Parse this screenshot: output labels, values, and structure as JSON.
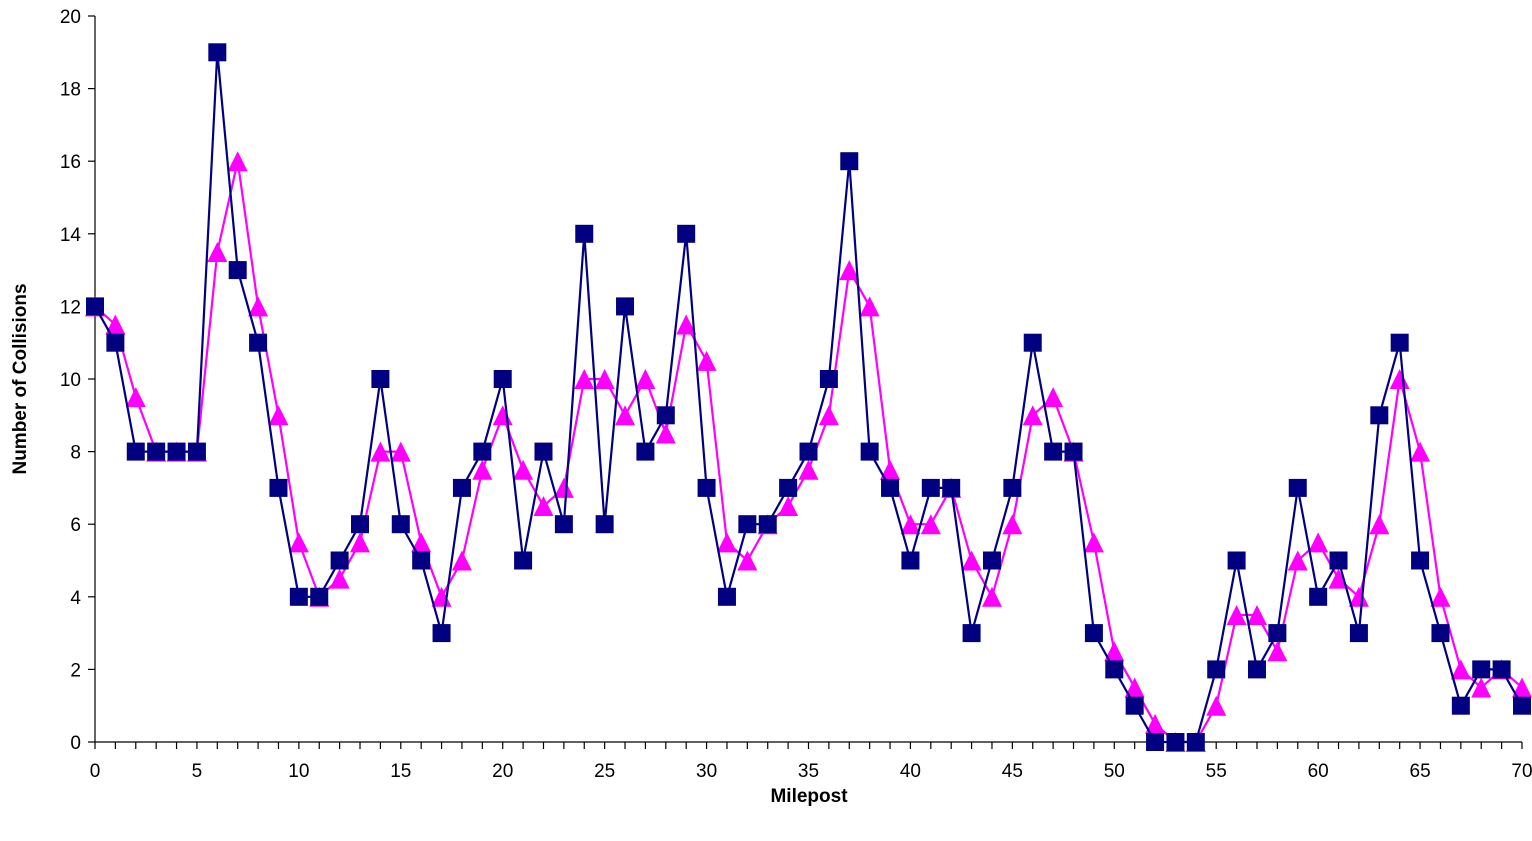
{
  "chart_data": {
    "type": "line",
    "title": "",
    "xlabel": "Milepost",
    "ylabel": "Number of Collisions",
    "xlim": [
      0,
      70
    ],
    "ylim": [
      0,
      20
    ],
    "x_ticks": [
      0,
      5,
      10,
      15,
      20,
      25,
      30,
      35,
      40,
      45,
      50,
      55,
      60,
      65,
      70
    ],
    "y_ticks": [
      0,
      2,
      4,
      6,
      8,
      10,
      12,
      14,
      16,
      18,
      20
    ],
    "x_minor_step": 1,
    "grid": false,
    "legend": "none",
    "x": [
      0,
      1,
      2,
      3,
      4,
      5,
      6,
      7,
      8,
      9,
      10,
      11,
      12,
      13,
      14,
      15,
      16,
      17,
      18,
      19,
      20,
      21,
      22,
      23,
      24,
      25,
      26,
      27,
      28,
      29,
      30,
      31,
      32,
      33,
      34,
      35,
      36,
      37,
      38,
      39,
      40,
      41,
      42,
      43,
      44,
      45,
      46,
      47,
      48,
      49,
      50,
      51,
      52,
      53,
      54,
      55,
      56,
      57,
      58,
      59,
      60,
      61,
      62,
      63,
      64,
      65,
      66,
      67,
      68,
      69,
      70
    ],
    "series": [
      {
        "color": "#000080",
        "marker": "square",
        "values": [
          12,
          11,
          8,
          8,
          8,
          8,
          19,
          13,
          11,
          7,
          4,
          4,
          5,
          6,
          10,
          6,
          5,
          3,
          7,
          8,
          10,
          5,
          8,
          6,
          14,
          6,
          12,
          8,
          9,
          14,
          7,
          4,
          6,
          6,
          7,
          8,
          10,
          16,
          8,
          7,
          5,
          7,
          7,
          3,
          5,
          7,
          11,
          8,
          8,
          3,
          2,
          1,
          0,
          0,
          0,
          2,
          5,
          2,
          3,
          7,
          4,
          5,
          3,
          9,
          11,
          5,
          3,
          1,
          2,
          2,
          1
        ]
      },
      {
        "color": "#FF00FF",
        "marker": "triangle",
        "values": [
          12,
          11.5,
          9.5,
          8,
          8,
          8,
          13.5,
          16,
          12,
          9,
          5.5,
          4,
          4.5,
          5.5,
          8,
          8,
          5.5,
          4,
          5,
          7.5,
          9,
          7.5,
          6.5,
          7,
          10,
          10,
          9,
          10,
          8.5,
          11.5,
          10.5,
          5.5,
          5,
          6,
          6.5,
          7.5,
          9,
          13,
          12,
          7.5,
          6,
          6,
          7,
          5,
          4,
          6,
          9,
          9.5,
          8,
          5.5,
          2.5,
          1.5,
          0.5,
          0,
          0,
          1,
          3.5,
          3.5,
          2.5,
          5,
          5.5,
          4.5,
          4,
          6,
          10,
          8,
          4,
          2,
          1.5,
          2,
          1.5
        ]
      }
    ]
  }
}
